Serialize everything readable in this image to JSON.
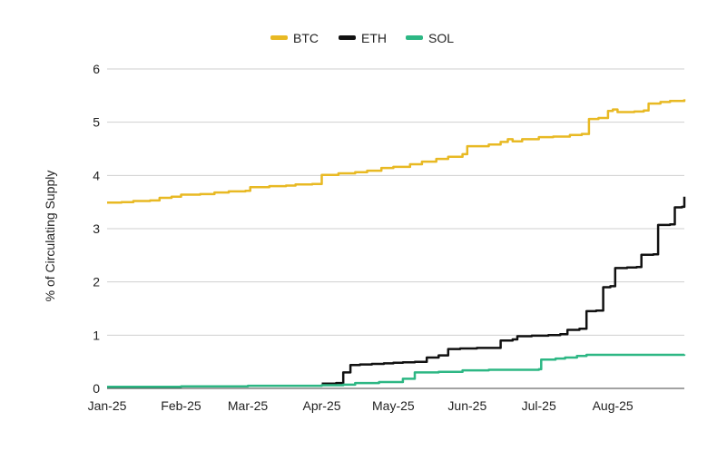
{
  "chart_data": {
    "type": "line",
    "title": "",
    "xlabel": "",
    "ylabel": "% of Circulating Supply",
    "ylim": [
      0,
      6
    ],
    "yticks": [
      "0",
      "1",
      "2",
      "3",
      "4",
      "5",
      "6"
    ],
    "xticks": [
      "Jan-25",
      "Feb-25",
      "Mar-25",
      "Apr-25",
      "May-25",
      "Jun-25",
      "Jul-25",
      "Aug-25"
    ],
    "grid": true,
    "legend_position": "top-center",
    "colors": {
      "BTC": "#E8B923",
      "ETH": "#111111",
      "SOL": "#2DB784"
    },
    "series": [
      {
        "name": "BTC",
        "points": [
          [
            "2025-01-01",
            3.49
          ],
          [
            "2025-01-07",
            3.5
          ],
          [
            "2025-01-12",
            3.52
          ],
          [
            "2025-01-19",
            3.53
          ],
          [
            "2025-01-23",
            3.58
          ],
          [
            "2025-01-28",
            3.6
          ],
          [
            "2025-02-01",
            3.64
          ],
          [
            "2025-02-09",
            3.65
          ],
          [
            "2025-02-15",
            3.68
          ],
          [
            "2025-02-21",
            3.7
          ],
          [
            "2025-02-28",
            3.71
          ],
          [
            "2025-03-02",
            3.78
          ],
          [
            "2025-03-10",
            3.8
          ],
          [
            "2025-03-17",
            3.81
          ],
          [
            "2025-03-21",
            3.83
          ],
          [
            "2025-03-28",
            3.84
          ],
          [
            "2025-04-01",
            4.01
          ],
          [
            "2025-04-08",
            4.04
          ],
          [
            "2025-04-15",
            4.06
          ],
          [
            "2025-04-20",
            4.09
          ],
          [
            "2025-04-26",
            4.14
          ],
          [
            "2025-05-01",
            4.16
          ],
          [
            "2025-05-08",
            4.21
          ],
          [
            "2025-05-13",
            4.26
          ],
          [
            "2025-05-19",
            4.31
          ],
          [
            "2025-05-24",
            4.35
          ],
          [
            "2025-05-30",
            4.4
          ],
          [
            "2025-06-01",
            4.55
          ],
          [
            "2025-06-10",
            4.58
          ],
          [
            "2025-06-15",
            4.63
          ],
          [
            "2025-06-18",
            4.68
          ],
          [
            "2025-06-20",
            4.64
          ],
          [
            "2025-06-24",
            4.68
          ],
          [
            "2025-07-01",
            4.72
          ],
          [
            "2025-07-07",
            4.73
          ],
          [
            "2025-07-14",
            4.76
          ],
          [
            "2025-07-19",
            4.78
          ],
          [
            "2025-07-22",
            5.06
          ],
          [
            "2025-07-26",
            5.08
          ],
          [
            "2025-07-30",
            5.21
          ],
          [
            "2025-08-01",
            5.24
          ],
          [
            "2025-08-03",
            5.19
          ],
          [
            "2025-08-10",
            5.2
          ],
          [
            "2025-08-14",
            5.22
          ],
          [
            "2025-08-16",
            5.35
          ],
          [
            "2025-08-21",
            5.38
          ],
          [
            "2025-08-25",
            5.4
          ],
          [
            "2025-08-31",
            5.43
          ]
        ]
      },
      {
        "name": "ETH",
        "points": [
          [
            "2025-04-01",
            0.09
          ],
          [
            "2025-04-07",
            0.1
          ],
          [
            "2025-04-10",
            0.3
          ],
          [
            "2025-04-13",
            0.44
          ],
          [
            "2025-04-17",
            0.45
          ],
          [
            "2025-04-22",
            0.46
          ],
          [
            "2025-04-27",
            0.47
          ],
          [
            "2025-05-01",
            0.48
          ],
          [
            "2025-05-05",
            0.49
          ],
          [
            "2025-05-10",
            0.5
          ],
          [
            "2025-05-15",
            0.58
          ],
          [
            "2025-05-20",
            0.62
          ],
          [
            "2025-05-24",
            0.74
          ],
          [
            "2025-05-29",
            0.75
          ],
          [
            "2025-06-05",
            0.76
          ],
          [
            "2025-06-13",
            0.76
          ],
          [
            "2025-06-15",
            0.9
          ],
          [
            "2025-06-20",
            0.92
          ],
          [
            "2025-06-22",
            0.98
          ],
          [
            "2025-06-28",
            0.99
          ],
          [
            "2025-07-05",
            1.0
          ],
          [
            "2025-07-10",
            1.02
          ],
          [
            "2025-07-13",
            1.1
          ],
          [
            "2025-07-18",
            1.12
          ],
          [
            "2025-07-21",
            1.45
          ],
          [
            "2025-07-25",
            1.46
          ],
          [
            "2025-07-28",
            1.9
          ],
          [
            "2025-07-31",
            1.92
          ],
          [
            "2025-08-02",
            2.26
          ],
          [
            "2025-08-07",
            2.27
          ],
          [
            "2025-08-11",
            2.28
          ],
          [
            "2025-08-13",
            2.51
          ],
          [
            "2025-08-18",
            2.52
          ],
          [
            "2025-08-20",
            3.07
          ],
          [
            "2025-08-25",
            3.08
          ],
          [
            "2025-08-27",
            3.4
          ],
          [
            "2025-08-30",
            3.41
          ],
          [
            "2025-08-31",
            3.6
          ]
        ]
      },
      {
        "name": "SOL",
        "points": [
          [
            "2025-01-01",
            0.03
          ],
          [
            "2025-02-01",
            0.04
          ],
          [
            "2025-03-01",
            0.05
          ],
          [
            "2025-04-01",
            0.06
          ],
          [
            "2025-04-10",
            0.07
          ],
          [
            "2025-04-15",
            0.1
          ],
          [
            "2025-04-25",
            0.12
          ],
          [
            "2025-05-05",
            0.18
          ],
          [
            "2025-05-10",
            0.3
          ],
          [
            "2025-05-20",
            0.31
          ],
          [
            "2025-05-30",
            0.34
          ],
          [
            "2025-06-10",
            0.35
          ],
          [
            "2025-06-20",
            0.35
          ],
          [
            "2025-07-01",
            0.36
          ],
          [
            "2025-07-02",
            0.54
          ],
          [
            "2025-07-08",
            0.56
          ],
          [
            "2025-07-12",
            0.58
          ],
          [
            "2025-07-17",
            0.61
          ],
          [
            "2025-07-21",
            0.63
          ],
          [
            "2025-08-01",
            0.63
          ],
          [
            "2025-08-15",
            0.63
          ],
          [
            "2025-08-31",
            0.64
          ]
        ]
      }
    ]
  }
}
